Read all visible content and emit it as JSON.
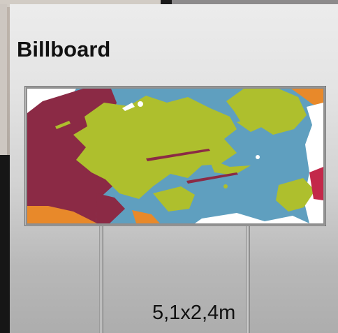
{
  "title": "Billboard",
  "dimensions": "5,1x2,4m",
  "colors": {
    "panel_top": "#ececec",
    "panel_bottom": "#adadad",
    "paint_crimson": "#8b2a45",
    "paint_lime": "#aebf2d",
    "paint_blue": "#5f9fbf",
    "paint_orange": "#e8892a",
    "paint_white": "#ffffff",
    "frame": "#8e8e8e",
    "text": "#111111"
  },
  "image": {
    "semantic": "paint-splatter-art"
  }
}
